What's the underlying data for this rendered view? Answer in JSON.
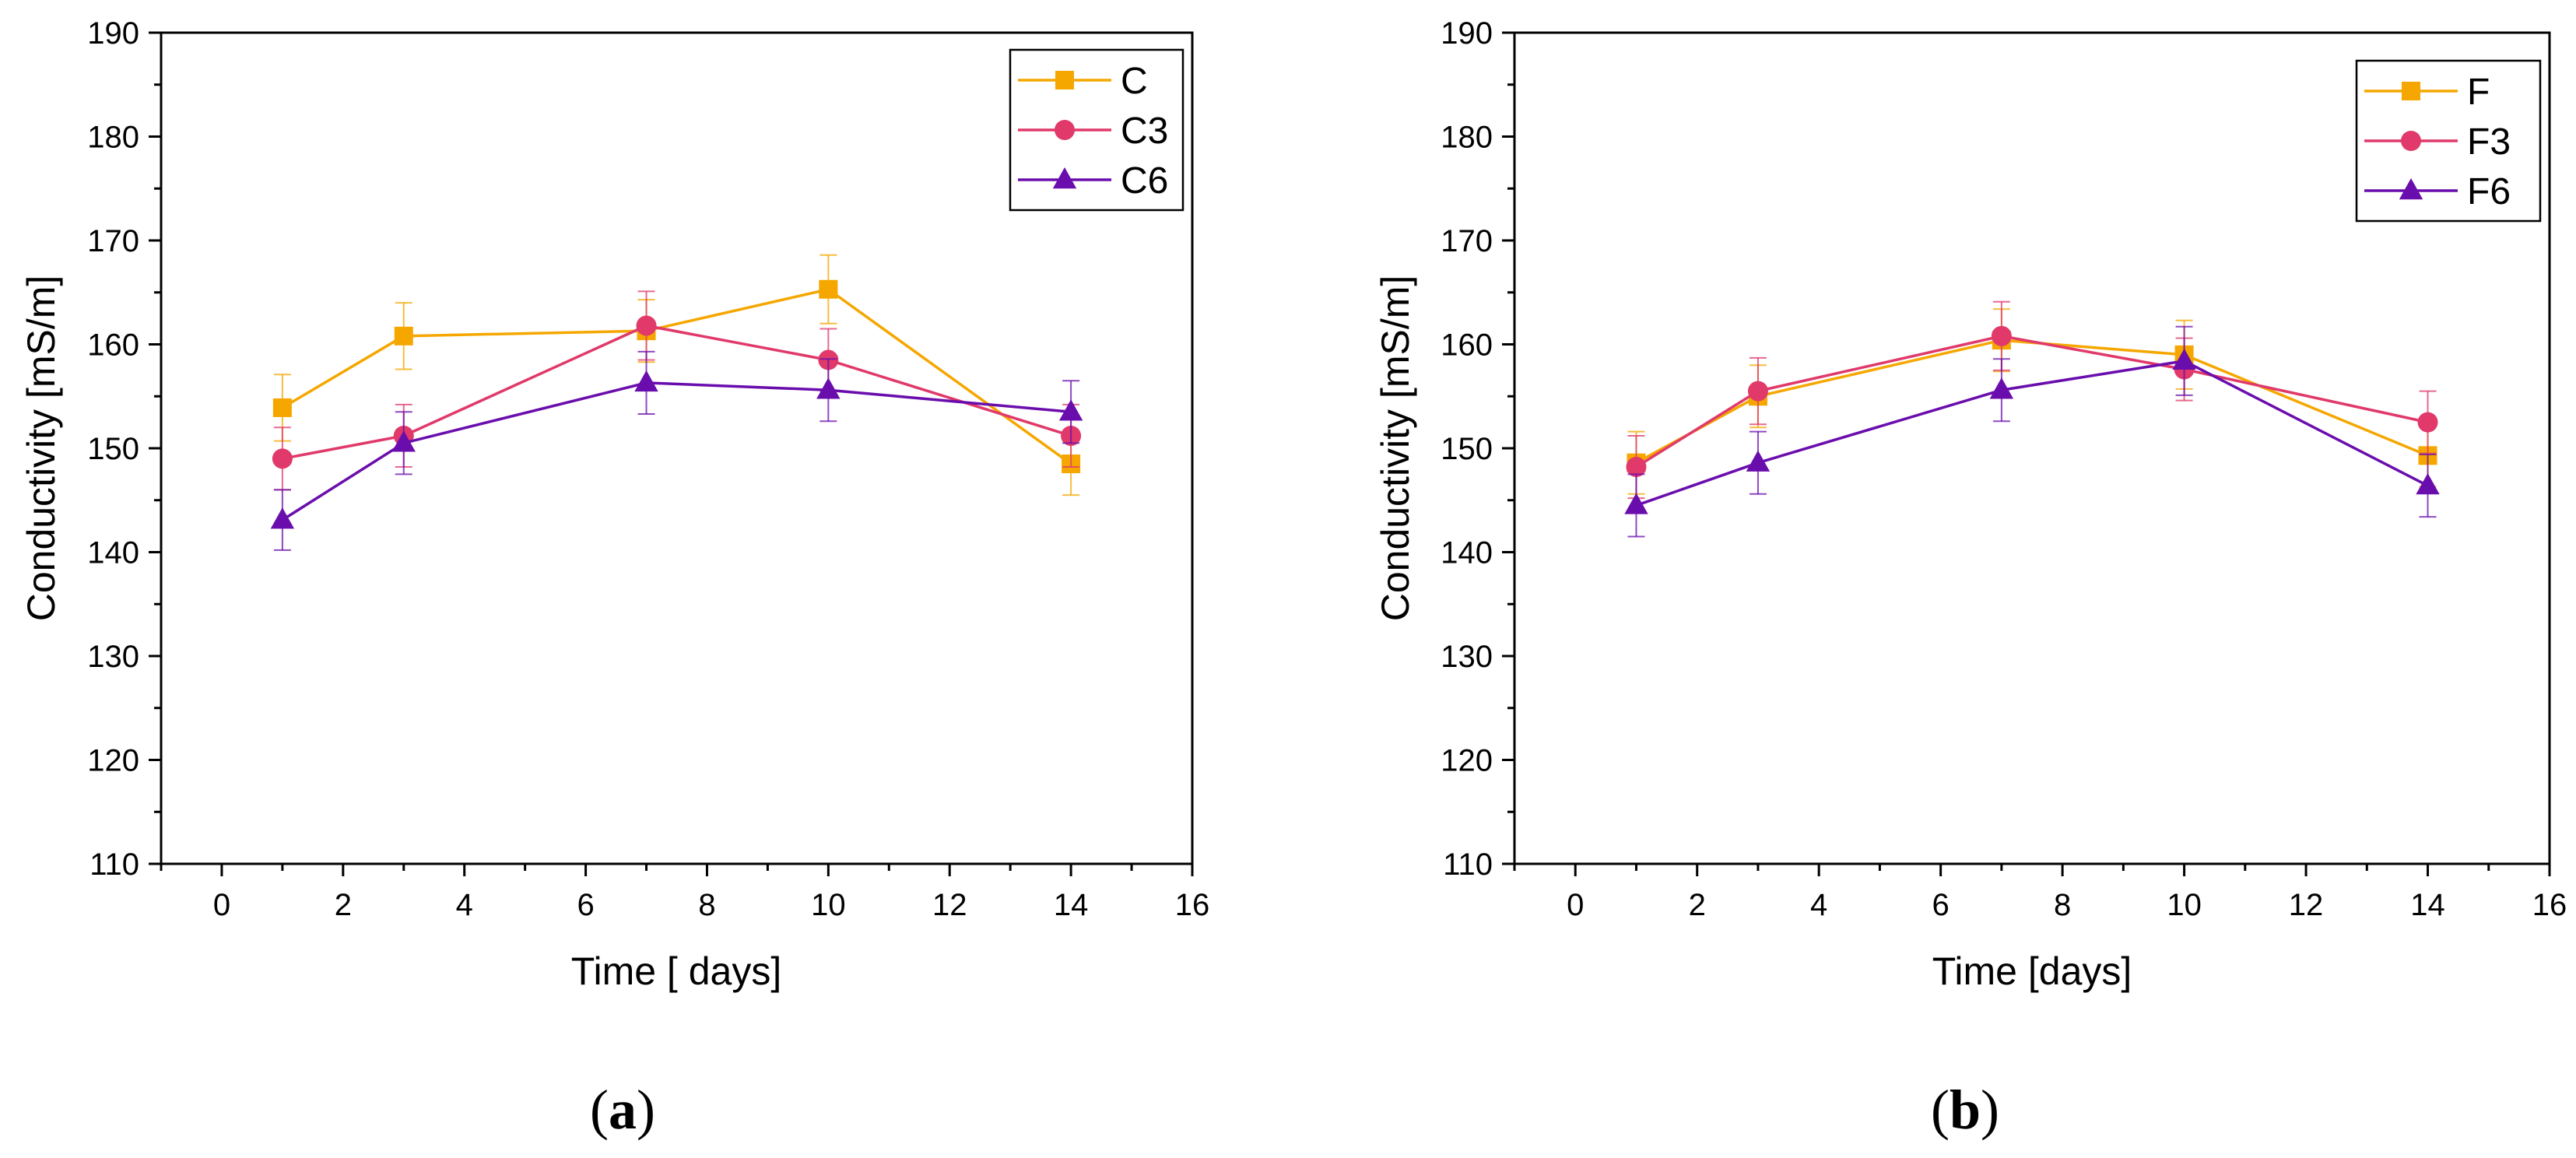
{
  "chart_data": [
    {
      "type": "line",
      "panel_label": "a",
      "title": "",
      "xlabel": "Time [ days]",
      "ylabel": "Conductivity [mS/m]",
      "xlim": [
        -1,
        16
      ],
      "ylim": [
        110,
        190
      ],
      "xticks": [
        "0",
        "2",
        "4",
        "6",
        "8",
        "10",
        "12",
        "14",
        "16"
      ],
      "yticks": [
        "110",
        "120",
        "130",
        "140",
        "150",
        "160",
        "170",
        "180",
        "190"
      ],
      "legend_position": "top-right",
      "grid": false,
      "x": [
        1,
        3,
        7,
        10,
        14
      ],
      "series": [
        {
          "name": "C",
          "color": "#F5A700",
          "marker": "square",
          "values": [
            153.9,
            160.8,
            161.3,
            165.3,
            148.5
          ],
          "errors": [
            3.2,
            3.2,
            3.0,
            3.3,
            3.0
          ]
        },
        {
          "name": "C3",
          "color": "#E0396A",
          "marker": "circle",
          "values": [
            149.0,
            151.2,
            161.8,
            158.5,
            151.2
          ],
          "errors": [
            3.0,
            3.0,
            3.3,
            3.0,
            3.0
          ]
        },
        {
          "name": "C6",
          "color": "#6A0DAD",
          "marker": "triangle",
          "values": [
            143.1,
            150.5,
            156.3,
            155.6,
            153.5
          ],
          "errors": [
            2.9,
            3.0,
            3.0,
            3.0,
            3.0
          ]
        }
      ]
    },
    {
      "type": "line",
      "panel_label": "b",
      "title": "",
      "xlabel": "Time [days]",
      "ylabel": "Conductivity [mS/m]",
      "xlim": [
        -1,
        16
      ],
      "ylim": [
        110,
        190
      ],
      "xticks": [
        "0",
        "2",
        "4",
        "6",
        "8",
        "10",
        "12",
        "14",
        "16"
      ],
      "yticks": [
        "110",
        "120",
        "130",
        "140",
        "150",
        "160",
        "170",
        "180",
        "190"
      ],
      "legend_position": "top-right",
      "grid": false,
      "x": [
        1,
        3,
        7,
        10,
        14
      ],
      "series": [
        {
          "name": "F",
          "color": "#F5A700",
          "marker": "square",
          "values": [
            148.6,
            155.0,
            160.4,
            159.0,
            149.3
          ],
          "errors": [
            3.0,
            3.0,
            3.0,
            3.3,
            3.0
          ]
        },
        {
          "name": "F3",
          "color": "#E0396A",
          "marker": "circle",
          "values": [
            148.2,
            155.5,
            160.8,
            157.6,
            152.5
          ],
          "errors": [
            3.0,
            3.2,
            3.3,
            3.0,
            3.0
          ]
        },
        {
          "name": "F6",
          "color": "#6A0DAD",
          "marker": "triangle",
          "values": [
            144.5,
            148.6,
            155.6,
            158.4,
            146.4
          ],
          "errors": [
            3.0,
            3.0,
            3.0,
            3.3,
            3.0
          ]
        }
      ]
    }
  ]
}
